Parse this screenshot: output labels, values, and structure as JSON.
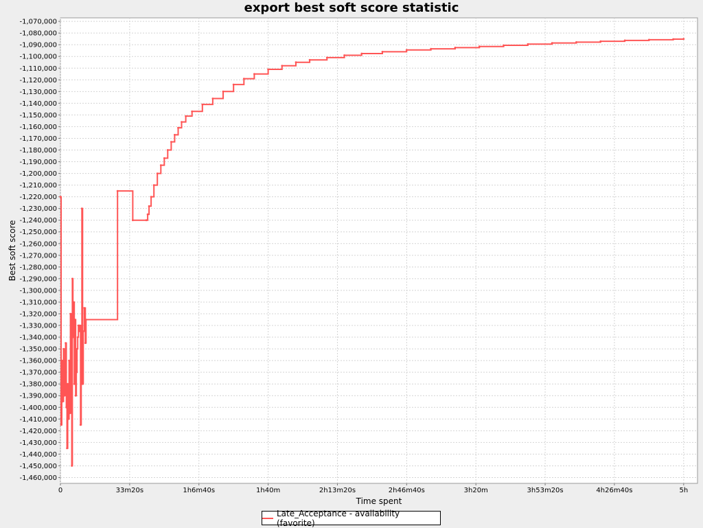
{
  "chart_data": {
    "type": "line",
    "title": "export best soft score statistic",
    "xlabel": "Time spent",
    "ylabel": "Best soft score",
    "xlim": [
      0,
      18400
    ],
    "ylim": [
      -1465000,
      -1067000
    ],
    "x_ticks": [
      {
        "value": 0,
        "label": "0"
      },
      {
        "value": 2000,
        "label": "33m20s"
      },
      {
        "value": 4000,
        "label": "1h6m40s"
      },
      {
        "value": 6000,
        "label": "1h40m"
      },
      {
        "value": 8000,
        "label": "2h13m20s"
      },
      {
        "value": 10000,
        "label": "2h46m40s"
      },
      {
        "value": 12000,
        "label": "3h20m"
      },
      {
        "value": 14000,
        "label": "3h53m20s"
      },
      {
        "value": 16000,
        "label": "4h26m40s"
      },
      {
        "value": 18000,
        "label": "5h"
      }
    ],
    "y_ticks": [
      {
        "value": -1070000,
        "label": "-1,070,000"
      },
      {
        "value": -1080000,
        "label": "-1,080,000"
      },
      {
        "value": -1090000,
        "label": "-1,090,000"
      },
      {
        "value": -1100000,
        "label": "-1,100,000"
      },
      {
        "value": -1110000,
        "label": "-1,110,000"
      },
      {
        "value": -1120000,
        "label": "-1,120,000"
      },
      {
        "value": -1130000,
        "label": "-1,130,000"
      },
      {
        "value": -1140000,
        "label": "-1,140,000"
      },
      {
        "value": -1150000,
        "label": "-1,150,000"
      },
      {
        "value": -1160000,
        "label": "-1,160,000"
      },
      {
        "value": -1170000,
        "label": "-1,170,000"
      },
      {
        "value": -1180000,
        "label": "-1,180,000"
      },
      {
        "value": -1190000,
        "label": "-1,190,000"
      },
      {
        "value": -1200000,
        "label": "-1,200,000"
      },
      {
        "value": -1210000,
        "label": "-1,210,000"
      },
      {
        "value": -1220000,
        "label": "-1,220,000"
      },
      {
        "value": -1230000,
        "label": "-1,230,000"
      },
      {
        "value": -1240000,
        "label": "-1,240,000"
      },
      {
        "value": -1250000,
        "label": "-1,250,000"
      },
      {
        "value": -1260000,
        "label": "-1,260,000"
      },
      {
        "value": -1270000,
        "label": "-1,270,000"
      },
      {
        "value": -1280000,
        "label": "-1,280,000"
      },
      {
        "value": -1290000,
        "label": "-1,290,000"
      },
      {
        "value": -1300000,
        "label": "-1,300,000"
      },
      {
        "value": -1310000,
        "label": "-1,310,000"
      },
      {
        "value": -1320000,
        "label": "-1,320,000"
      },
      {
        "value": -1330000,
        "label": "-1,330,000"
      },
      {
        "value": -1340000,
        "label": "-1,340,000"
      },
      {
        "value": -1350000,
        "label": "-1,350,000"
      },
      {
        "value": -1360000,
        "label": "-1,360,000"
      },
      {
        "value": -1370000,
        "label": "-1,370,000"
      },
      {
        "value": -1380000,
        "label": "-1,380,000"
      },
      {
        "value": -1390000,
        "label": "-1,390,000"
      },
      {
        "value": -1400000,
        "label": "-1,400,000"
      },
      {
        "value": -1410000,
        "label": "-1,410,000"
      },
      {
        "value": -1420000,
        "label": "-1,420,000"
      },
      {
        "value": -1430000,
        "label": "-1,430,000"
      },
      {
        "value": -1440000,
        "label": "-1,440,000"
      },
      {
        "value": -1450000,
        "label": "-1,450,000"
      },
      {
        "value": -1460000,
        "label": "-1,460,000"
      }
    ],
    "grid": true,
    "legend_position": "bottom-center",
    "colors": {
      "series": "#ff5555",
      "grid": "#d4d4d4",
      "plot_bg": "#ffffff",
      "page_bg": "#eeeeee"
    },
    "series": [
      {
        "name": "Late_Acceptance - availability (favorite)",
        "step": true,
        "points": [
          [
            0,
            -1220000
          ],
          [
            20,
            -1415000
          ],
          [
            40,
            -1360000
          ],
          [
            60,
            -1395000
          ],
          [
            90,
            -1350000
          ],
          [
            110,
            -1390000
          ],
          [
            130,
            -1360000
          ],
          [
            150,
            -1345000
          ],
          [
            170,
            -1400000
          ],
          [
            190,
            -1435000
          ],
          [
            210,
            -1380000
          ],
          [
            230,
            -1410000
          ],
          [
            250,
            -1360000
          ],
          [
            270,
            -1405000
          ],
          [
            290,
            -1320000
          ],
          [
            310,
            -1350000
          ],
          [
            330,
            -1450000
          ],
          [
            345,
            -1290000
          ],
          [
            360,
            -1340000
          ],
          [
            380,
            -1310000
          ],
          [
            400,
            -1380000
          ],
          [
            420,
            -1325000
          ],
          [
            440,
            -1390000
          ],
          [
            460,
            -1370000
          ],
          [
            480,
            -1350000
          ],
          [
            500,
            -1340000
          ],
          [
            520,
            -1330000
          ],
          [
            540,
            -1335000
          ],
          [
            560,
            -1330000
          ],
          [
            580,
            -1415000
          ],
          [
            600,
            -1340000
          ],
          [
            620,
            -1230000
          ],
          [
            640,
            -1380000
          ],
          [
            660,
            -1335000
          ],
          [
            690,
            -1315000
          ],
          [
            720,
            -1345000
          ],
          [
            740,
            -1325000
          ],
          [
            1650,
            -1215000
          ],
          [
            2090,
            -1240000
          ],
          [
            2480,
            -1240000
          ],
          [
            2520,
            -1235000
          ],
          [
            2560,
            -1228000
          ],
          [
            2620,
            -1220000
          ],
          [
            2700,
            -1210000
          ],
          [
            2800,
            -1200000
          ],
          [
            2900,
            -1193000
          ],
          [
            3000,
            -1187000
          ],
          [
            3100,
            -1180000
          ],
          [
            3200,
            -1173000
          ],
          [
            3300,
            -1167000
          ],
          [
            3400,
            -1161000
          ],
          [
            3500,
            -1156000
          ],
          [
            3620,
            -1151000
          ],
          [
            3800,
            -1147000
          ],
          [
            4100,
            -1141000
          ],
          [
            4400,
            -1136000
          ],
          [
            4700,
            -1130000
          ],
          [
            5000,
            -1124000
          ],
          [
            5300,
            -1119000
          ],
          [
            5600,
            -1115000
          ],
          [
            6000,
            -1111000
          ],
          [
            6400,
            -1108000
          ],
          [
            6800,
            -1105000
          ],
          [
            7200,
            -1103000
          ],
          [
            7700,
            -1101000
          ],
          [
            8200,
            -1099000
          ],
          [
            8700,
            -1097500
          ],
          [
            9300,
            -1096000
          ],
          [
            10000,
            -1094500
          ],
          [
            10700,
            -1093500
          ],
          [
            11400,
            -1092500
          ],
          [
            12100,
            -1091500
          ],
          [
            12800,
            -1090500
          ],
          [
            13500,
            -1089500
          ],
          [
            14200,
            -1088500
          ],
          [
            14900,
            -1087800
          ],
          [
            15600,
            -1087000
          ],
          [
            16300,
            -1086300
          ],
          [
            17000,
            -1085700
          ],
          [
            17700,
            -1085200
          ],
          [
            18000,
            -1085000
          ]
        ]
      }
    ]
  }
}
